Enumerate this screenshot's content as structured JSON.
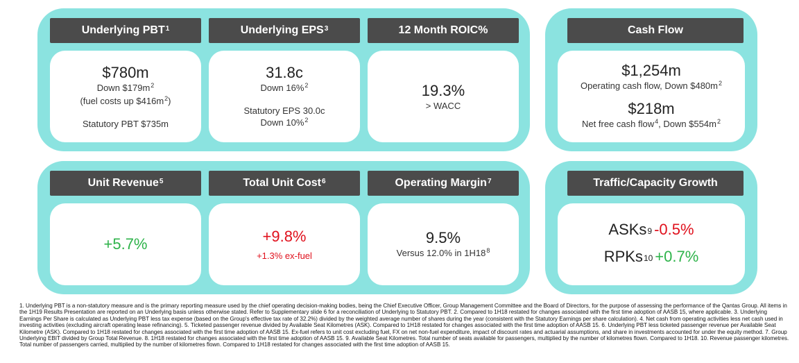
{
  "row1": {
    "pbt": {
      "title": "Underlying PBT",
      "title_sup": "1",
      "value": "$780m",
      "line1": "Down $179m",
      "line1_sup": "2",
      "line2": "(fuel costs up $416m",
      "line2_sup": "2",
      "line2_end": ")",
      "line3": "Statutory PBT $735m"
    },
    "eps": {
      "title": "Underlying EPS",
      "title_sup": "3",
      "value": "31.8c",
      "line1": "Down 16%",
      "line1_sup": "2",
      "line2": "Statutory EPS 30.0c",
      "line3": "Down 10%",
      "line3_sup": "2"
    },
    "roic": {
      "title": "12 Month ROIC%",
      "value": "19.3%",
      "line1": "> WACC"
    },
    "cash": {
      "title": "Cash Flow",
      "value1": "$1,254m",
      "line1": "Operating cash flow, Down $480m",
      "line1_sup": "2",
      "value2": "$218m",
      "line2": "Net free cash flow",
      "line2_sup_a": "4",
      "line2_mid": ", Down $554m",
      "line2_sup_b": "2"
    }
  },
  "row2": {
    "unit_revenue": {
      "title": "Unit Revenue",
      "title_sup": "5",
      "value": "+5.7%"
    },
    "unit_cost": {
      "title": "Total Unit Cost",
      "title_sup": "6",
      "value": "+9.8%",
      "line1": "+1.3% ex-fuel"
    },
    "margin": {
      "title": "Operating Margin",
      "title_sup": "7",
      "value": "9.5%",
      "line1": "Versus 12.0% in 1H18",
      "line1_sup": "8"
    },
    "traffic": {
      "title": "Traffic/Capacity Growth",
      "asks_label": "ASKs",
      "asks_sup": "9",
      "asks_value": "-0.5%",
      "rpks_label": "RPKs",
      "rpks_sup": "10",
      "rpks_value": "+0.7%"
    }
  },
  "colors": {
    "panel": "#8be3e0",
    "header": "#4b4b4b",
    "positive": "#2eb34a",
    "negative": "#e0101c"
  },
  "footnotes": "1. Underlying PBT is a non-statutory measure and is the primary reporting measure used by the chief operating decision-making bodies, being the Chief Executive Officer, Group Management Committee and the Board of Directors, for the purpose of assessing the performance of the Qantas Group. All items in the 1H19 Results Presentation are reported on an Underlying basis unless otherwise stated. Refer to Supplementary slide 6 for a reconciliation of Underlying to Statutory PBT. 2. Compared to 1H18 restated for changes associated with the first time adoption of AASB 15, where applicable. 3. Underlying Earnings Per Share is calculated as Underlying PBT less tax expense (based on the Group's effective tax rate of 32.2%) divided by the weighted average number of shares during the year (consistent with the Statutory Earnings per share calculation). 4. Net cash from operating activities less net cash used in investing activities (excluding aircraft operating lease refinancing). 5. Ticketed passenger revenue divided by Available Seat Kilometres (ASK). Compared to 1H18 restated for changes associated with the first time adoption of AASB 15. 6. Underlying PBT less ticketed passenger revenue per Available Seat Kilometre (ASK). Compared to 1H18 restated for changes associated with the first time adoption of AASB 15. Ex-fuel refers to unit cost excluding fuel, FX on net non-fuel expenditure, impact of discount rates and actuarial assumptions, and share in investments accounted for under the equity method. 7. Group Underlying EBIT divided by Group Total Revenue. 8. 1H18 restated for changes associated with the first time adoption of AASB 15. 9. Available Seat Kilometres. Total number of seats available for passengers, multiplied by the number of kilometres flown. Compared to 1H18. 10. Revenue passenger kilometres. Total number of passengers carried, multiplied by the number of kilometres flown. Compared to 1H18 restated for changes associated with the first time adoption of AASB 15."
}
